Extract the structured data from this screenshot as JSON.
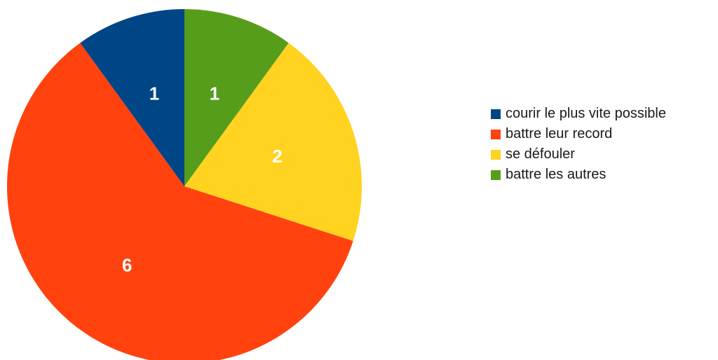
{
  "chart_data": {
    "type": "pie",
    "categories": [
      "courir le plus vite possible",
      "battre leur record",
      "se défouler",
      "battre les autres"
    ],
    "values": [
      1,
      6,
      2,
      1
    ],
    "data_labels": [
      "1",
      "6",
      "2",
      "1"
    ],
    "colors": [
      "#004586",
      "#ff420e",
      "#ffd320",
      "#579d1c"
    ],
    "slice_order_clockwise_from_top": [
      3,
      2,
      1,
      0
    ],
    "legend": "right",
    "title": ""
  }
}
